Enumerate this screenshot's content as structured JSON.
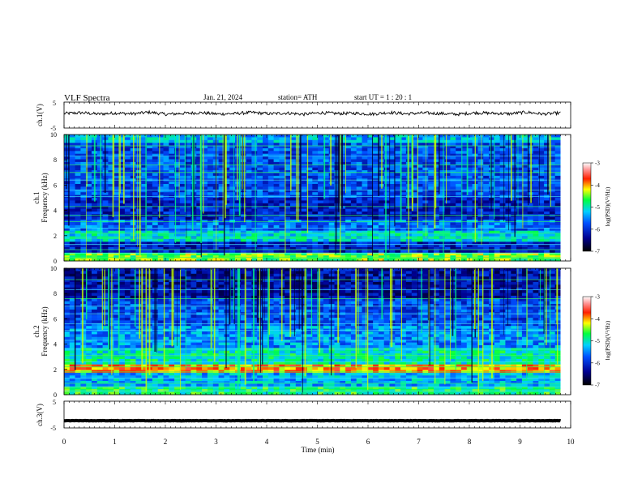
{
  "header": {
    "title": "VLF  Spectra",
    "date": "Jan. 21, 2024",
    "station": "station= ATH",
    "start_ut": "start  UT  =   1  : 20 : 1"
  },
  "chart_data": [
    {
      "type": "line",
      "panel": "ch1-voltage",
      "ylabel": "ch.1(V)",
      "ylim": [
        -5,
        5
      ],
      "yticks": [
        "5",
        "-5"
      ],
      "x_range_min": [
        0,
        9.8
      ],
      "series": [
        {
          "values": [
            0.6,
            0.9,
            0.4,
            0.8,
            0.5,
            1.1,
            0.3,
            0.7,
            0.9,
            0.4,
            0.6,
            1.0,
            0.5,
            0.8,
            0.3,
            0.9,
            0.6,
            0.7,
            0.4,
            1.0,
            0.5,
            0.8,
            0.6,
            0.3,
            0.9,
            0.7,
            0.5,
            1.1,
            0.4,
            0.8
          ]
        }
      ]
    },
    {
      "type": "heatmap",
      "panel": "ch1-spectrogram",
      "ylabel": "Frequency (kHz)",
      "channel_label": "ch.1",
      "ylim": [
        0,
        10
      ],
      "yticks": [
        "0",
        "2",
        "4",
        "6",
        "8",
        "10"
      ],
      "x_range_min": [
        0,
        9.8
      ],
      "colorbar": {
        "label": "log(PSD)(V²/Hz)",
        "range": [
          -7,
          -3
        ],
        "ticks": [
          "-3",
          "-4",
          "-5",
          "-6",
          "-7"
        ]
      }
    },
    {
      "type": "heatmap",
      "panel": "ch2-spectrogram",
      "ylabel": "Frequency (kHz)",
      "channel_label": "ch.2",
      "ylim": [
        0,
        10
      ],
      "yticks": [
        "0",
        "2",
        "4",
        "6",
        "8",
        "10"
      ],
      "x_range_min": [
        0,
        9.8
      ],
      "colorbar": {
        "label": "log(PSD)(V²/Hz)",
        "range": [
          -7,
          -3
        ],
        "ticks": [
          "-3",
          "-4",
          "-5",
          "-6",
          "-7"
        ]
      }
    },
    {
      "type": "line",
      "panel": "ch3-voltage",
      "ylabel": "ch.3(V)",
      "ylim": [
        -5,
        5
      ],
      "yticks": [
        "5",
        "-5"
      ],
      "x_range_min": [
        0,
        9.8
      ],
      "series": [
        {
          "values": [
            -2.3,
            -2.3,
            -2.3,
            -2.3,
            -2.3,
            -2.3,
            -2.3,
            -2.3,
            -2.3,
            -2.3
          ]
        }
      ]
    }
  ],
  "x_axis": {
    "label": "Time  (min)",
    "ticks": [
      "0",
      "1",
      "2",
      "3",
      "4",
      "5",
      "6",
      "7",
      "8",
      "9",
      "10"
    ],
    "range": [
      0,
      10
    ]
  }
}
